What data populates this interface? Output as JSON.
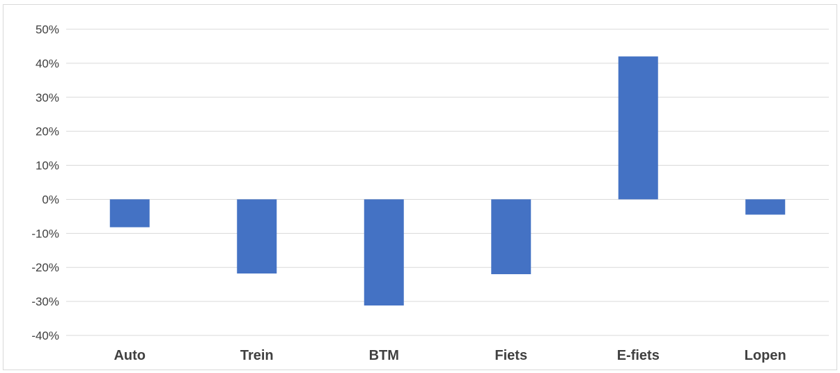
{
  "chart_data": {
    "type": "bar",
    "title": "",
    "xlabel": "",
    "ylabel": "",
    "categories": [
      "Auto",
      "Trein",
      "BTM",
      "Fiets",
      "E-fiets",
      "Lopen"
    ],
    "values": [
      -8.2,
      -21.8,
      -31.2,
      -22.0,
      42.0,
      -4.5
    ],
    "ylim": [
      -40,
      50
    ],
    "yticks": [
      50,
      40,
      30,
      20,
      10,
      0,
      -10,
      -20,
      -30,
      -40
    ],
    "ytick_labels": [
      "50%",
      "40%",
      "30%",
      "20%",
      "10%",
      "0%",
      "-10%",
      "-20%",
      "-30%",
      "-40%"
    ],
    "bar_color": "#4472c4",
    "grid": true,
    "legend": "none"
  }
}
